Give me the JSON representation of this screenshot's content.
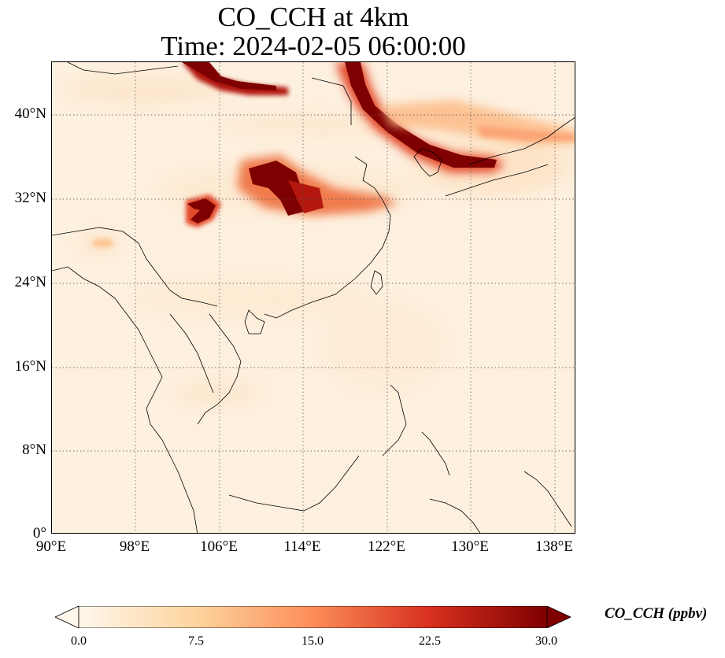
{
  "title": {
    "line1": "CO_CCH at 4km",
    "line2": "Time: 2024-02-05 06:00:00"
  },
  "map": {
    "lon_range": [
      90,
      140
    ],
    "lat_range": [
      0,
      45
    ],
    "grid": "dotted",
    "lat_ticks": [
      "40°N",
      "32°N",
      "24°N",
      "16°N",
      "8°N",
      "0°"
    ],
    "lon_ticks": [
      "90°E",
      "98°E",
      "106°E",
      "114°E",
      "122°E",
      "130°E",
      "138°E"
    ],
    "field": "CO concentration, high values over northern China, Korea and central China"
  },
  "colorbar": {
    "label": "CO_CCH (ppbv)",
    "ticks": [
      "0.0",
      "7.5",
      "15.0",
      "22.5",
      "30.0"
    ],
    "range": [
      0,
      30
    ],
    "extend": "both",
    "colormap": [
      "#fff7ec",
      "#fdd49e",
      "#fc8d59",
      "#d7301f",
      "#7f0000"
    ]
  }
}
